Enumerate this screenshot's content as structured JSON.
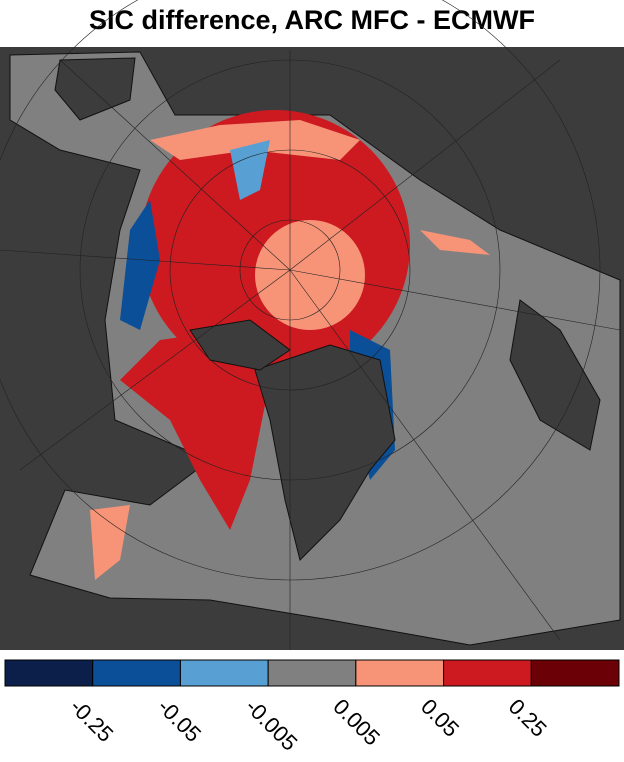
{
  "title": "SIC difference, ARC MFC - ECMWF",
  "colorbar": {
    "colors": [
      "#0c1f4b",
      "#0a4f97",
      "#58a0d4",
      "#808080",
      "#f79478",
      "#cc1a20",
      "#6b0006"
    ],
    "ticks": [
      -0.25,
      -0.05,
      -0.005,
      0.005,
      0.05,
      0.25
    ]
  }
}
